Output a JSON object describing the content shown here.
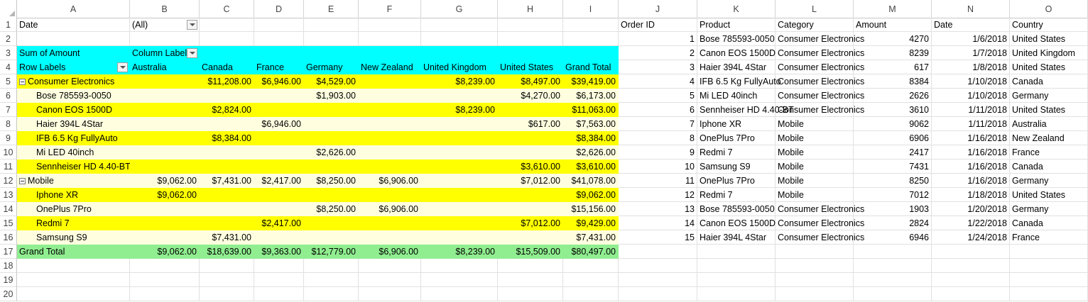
{
  "columns": [
    "A",
    "B",
    "C",
    "D",
    "E",
    "F",
    "G",
    "H",
    "I",
    "J",
    "K",
    "L",
    "M",
    "N",
    "O"
  ],
  "rows": [
    [
      "Date",
      "(All)",
      "",
      "",
      "",
      "",
      "",
      "",
      "",
      "Order ID",
      "Product",
      "Category",
      "Amount",
      "Date",
      "Country"
    ],
    [
      "",
      "",
      "",
      "",
      "",
      "",
      "",
      "",
      "",
      "1",
      "Bose 785593-0050",
      "Consumer Electronics",
      "4270",
      "1/6/2018",
      "United States"
    ],
    [
      "Sum of Amount",
      "Column Labels",
      "",
      "",
      "",
      "",
      "",
      "",
      "",
      "2",
      "Canon EOS 1500D",
      "Consumer Electronics",
      "8239",
      "1/7/2018",
      "United Kingdom"
    ],
    [
      "Row Labels",
      "Australia",
      "Canada",
      "France",
      "Germany",
      "New Zealand",
      "United Kingdom",
      "United States",
      "Grand Total",
      "3",
      "Haier 394L 4Star",
      "Consumer Electronics",
      "617",
      "1/8/2018",
      "United States"
    ],
    [
      "Consumer Electronics",
      "",
      "$11,208.00",
      "$6,946.00",
      "$4,529.00",
      "",
      "$8,239.00",
      "$8,497.00",
      "$39,419.00",
      "4",
      "IFB 6.5 Kg FullyAuto",
      "Consumer Electronics",
      "8384",
      "1/10/2018",
      "Canada"
    ],
    [
      "Bose 785593-0050",
      "",
      "",
      "",
      "$1,903.00",
      "",
      "",
      "$4,270.00",
      "$6,173.00",
      "5",
      "Mi LED 40inch",
      "Consumer Electronics",
      "2626",
      "1/10/2018",
      "Germany"
    ],
    [
      "Canon EOS 1500D",
      "",
      "$2,824.00",
      "",
      "",
      "",
      "$8,239.00",
      "",
      "$11,063.00",
      "6",
      "Sennheiser HD 4.40-BT",
      "Consumer Electronics",
      "3610",
      "1/11/2018",
      "United States"
    ],
    [
      "Haier 394L 4Star",
      "",
      "",
      "$6,946.00",
      "",
      "",
      "",
      "$617.00",
      "$7,563.00",
      "7",
      "Iphone XR",
      "Mobile",
      "9062",
      "1/11/2018",
      "Australia"
    ],
    [
      "IFB 6.5 Kg FullyAuto",
      "",
      "$8,384.00",
      "",
      "",
      "",
      "",
      "",
      "$8,384.00",
      "8",
      "OnePlus 7Pro",
      "Mobile",
      "6906",
      "1/16/2018",
      "New Zealand"
    ],
    [
      "Mi LED 40inch",
      "",
      "",
      "",
      "$2,626.00",
      "",
      "",
      "",
      "$2,626.00",
      "9",
      "Redmi 7",
      "Mobile",
      "2417",
      "1/16/2018",
      "France"
    ],
    [
      "Sennheiser HD 4.40-BT",
      "",
      "",
      "",
      "",
      "",
      "",
      "$3,610.00",
      "$3,610.00",
      "10",
      "Samsung S9",
      "Mobile",
      "7431",
      "1/16/2018",
      "Canada"
    ],
    [
      "Mobile",
      "$9,062.00",
      "$7,431.00",
      "$2,417.00",
      "$8,250.00",
      "$6,906.00",
      "",
      "$7,012.00",
      "$41,078.00",
      "11",
      "OnePlus 7Pro",
      "Mobile",
      "8250",
      "1/16/2018",
      "Germany"
    ],
    [
      "Iphone XR",
      "$9,062.00",
      "",
      "",
      "",
      "",
      "",
      "",
      "$9,062.00",
      "12",
      "Redmi 7",
      "Mobile",
      "7012",
      "1/18/2018",
      "United States"
    ],
    [
      "OnePlus 7Pro",
      "",
      "",
      "",
      "$8,250.00",
      "$6,906.00",
      "",
      "",
      "$15,156.00",
      "13",
      "Bose 785593-0050",
      "Consumer Electronics",
      "1903",
      "1/20/2018",
      "Germany"
    ],
    [
      "Redmi 7",
      "",
      "",
      "$2,417.00",
      "",
      "",
      "",
      "$7,012.00",
      "$9,429.00",
      "14",
      "Canon EOS 1500D",
      "Consumer Electronics",
      "2824",
      "1/22/2018",
      "Canada"
    ],
    [
      "Samsung S9",
      "",
      "$7,431.00",
      "",
      "",
      "",
      "",
      "",
      "$7,431.00",
      "15",
      "Haier 394L 4Star",
      "Consumer Electronics",
      "6946",
      "1/24/2018",
      "France"
    ],
    [
      "Grand Total",
      "$9,062.00",
      "$18,639.00",
      "$9,363.00",
      "$12,779.00",
      "$6,906.00",
      "$8,239.00",
      "$15,509.00",
      "$80,497.00",
      "",
      "",
      "",
      "",
      "",
      ""
    ],
    [
      "",
      "",
      "",
      "",
      "",
      "",
      "",
      "",
      "",
      "",
      "",
      "",
      "",
      "",
      ""
    ],
    [
      "",
      "",
      "",
      "",
      "",
      "",
      "",
      "",
      "",
      "",
      "",
      "",
      "",
      "",
      ""
    ],
    [
      "",
      "",
      "",
      "",
      "",
      "",
      "",
      "",
      "",
      "",
      "",
      "",
      "",
      "",
      ""
    ]
  ],
  "colors": {
    "header_cyan": "#00ffff",
    "group_yellow": "#ffff00",
    "item_light": "#ffffe0",
    "total_green": "#90ee90"
  }
}
